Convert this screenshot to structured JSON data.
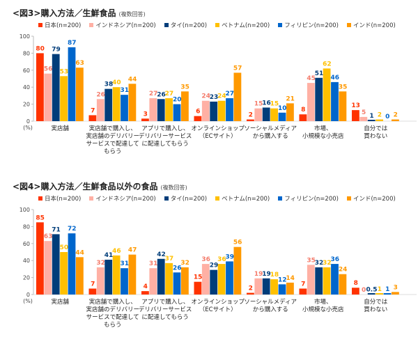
{
  "chart_data": [
    {
      "type": "bar",
      "title": "<図3>購入方法／生鮮食品",
      "subtitle": "(複数回答)",
      "ylabel": "(%)",
      "ylim": [
        0,
        100
      ],
      "yticks": [
        "0",
        "20",
        "40",
        "60",
        "80",
        "100"
      ],
      "grid": false,
      "legend_position": "top",
      "categories": [
        [
          "実店舗"
        ],
        [
          "実店舗で購入し、",
          "実店舗のデリバリー",
          "サービスで配達して",
          "もらう"
        ],
        [
          "アプリで購入し、",
          "デリバリーサービス",
          "に配達してもらう"
        ],
        [
          "オンラインショップ",
          "（ECサイト）"
        ],
        [
          "ソーシャルメディア",
          "から購入する"
        ],
        [
          "市場、",
          "小規模な小売店"
        ],
        [
          "自分では",
          "買わない"
        ]
      ],
      "series": [
        {
          "name": "日本(n=200)",
          "color": "#ff3300",
          "label_color": "#ff3300",
          "values": [
            80,
            7,
            3,
            6,
            2,
            8,
            13
          ]
        },
        {
          "name": "インドネシア(n=200)",
          "color": "#ffb0a4",
          "label_color": "#f47c6c",
          "values": [
            56,
            26,
            27,
            24,
            15,
            45,
            5
          ]
        },
        {
          "name": "タイ(n=200)",
          "color": "#003d7a",
          "label_color": "#003d7a",
          "values": [
            79,
            38,
            26,
            23,
            16,
            51,
            1
          ]
        },
        {
          "name": "ベトナム(n=200)",
          "color": "#ffc000",
          "label_color": "#ffc000",
          "values": [
            53,
            40,
            27,
            24,
            15,
            62,
            2
          ]
        },
        {
          "name": "フィリピン(n=200)",
          "color": "#0066cc",
          "label_color": "#0066cc",
          "values": [
            87,
            31,
            20,
            27,
            10,
            46,
            0
          ]
        },
        {
          "name": "インド(n=200)",
          "color": "#ff9900",
          "label_color": "#ff9900",
          "values": [
            63,
            44,
            35,
            57,
            21,
            35,
            2
          ]
        }
      ]
    },
    {
      "type": "bar",
      "title": "<図4>購入方法／生鮮食品以外の食品",
      "subtitle": "(複数回答)",
      "ylabel": "(%)",
      "ylim": [
        0,
        100
      ],
      "yticks": [
        "0",
        "20",
        "40",
        "60",
        "80",
        "100"
      ],
      "grid": false,
      "legend_position": "top",
      "categories": [
        [
          "実店舗"
        ],
        [
          "実店舗で購入し、",
          "実店舗のデリバリー",
          "サービスで配達して",
          "もらう"
        ],
        [
          "アプリで購入し、",
          "デリバリーサービス",
          "に配達してもらう"
        ],
        [
          "オンラインショップ",
          "（ECサイト）"
        ],
        [
          "ソーシャルメディア",
          "から購入する"
        ],
        [
          "市場、",
          "小規模な小売店"
        ],
        [
          "自分では",
          "買わない"
        ]
      ],
      "series": [
        {
          "name": "日本(n=200)",
          "color": "#ff3300",
          "label_color": "#ff3300",
          "values": [
            85,
            7,
            4,
            15,
            2,
            7,
            8
          ]
        },
        {
          "name": "インドネシア(n=200)",
          "color": "#ffb0a4",
          "label_color": "#f47c6c",
          "values": [
            63,
            32,
            31,
            36,
            19,
            35,
            0
          ]
        },
        {
          "name": "タイ(n=200)",
          "color": "#003d7a",
          "label_color": "#003d7a",
          "values": [
            71,
            41,
            42,
            29,
            19,
            32,
            0.5
          ]
        },
        {
          "name": "ベトナム(n=200)",
          "color": "#ffc000",
          "label_color": "#ffc000",
          "values": [
            50,
            46,
            37,
            36,
            18,
            32,
            1
          ]
        },
        {
          "name": "フィリピン(n=200)",
          "color": "#0066cc",
          "label_color": "#0066cc",
          "values": [
            72,
            31,
            26,
            39,
            12,
            36,
            1
          ]
        },
        {
          "name": "インド(n=200)",
          "color": "#ff9900",
          "label_color": "#ff9900",
          "values": [
            44,
            47,
            32,
            56,
            14,
            24,
            3
          ]
        }
      ]
    }
  ]
}
